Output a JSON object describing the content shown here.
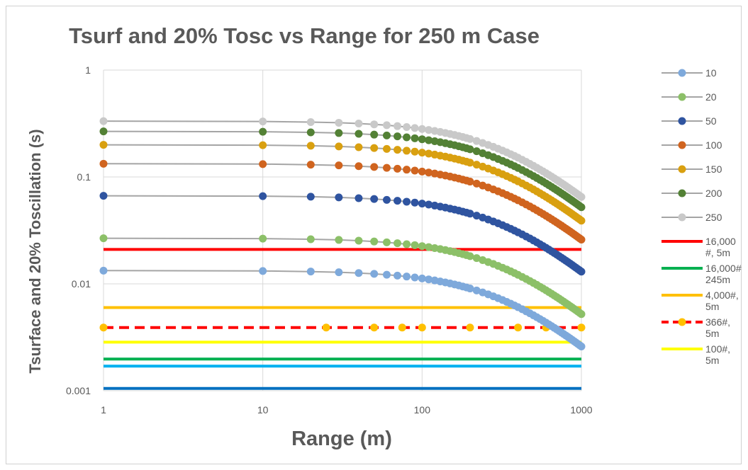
{
  "chart_data": {
    "type": "scatter",
    "title": "Tsurf and 20% Tosc vs Range  for 250 m Case",
    "xlabel": "Range (m)",
    "ylabel": "Tsurface and 20% Toscillation (s)",
    "xscale": "log",
    "yscale": "log",
    "xlim": [
      1,
      1000
    ],
    "ylim": [
      0.001,
      1
    ],
    "x_ticks": [
      "1",
      "10",
      "100",
      "1000"
    ],
    "y_ticks": [
      "0.001",
      "0.01",
      "0.1",
      "1"
    ],
    "grid": true,
    "legend_position": "right",
    "series": [
      {
        "name": "10",
        "color": "#7ea9db",
        "kind": "line-markers",
        "base": 0.0133
      },
      {
        "name": "20",
        "color": "#8cc068",
        "kind": "line-markers",
        "base": 0.0267
      },
      {
        "name": "50",
        "color": "#2f54a0",
        "kind": "line-markers",
        "base": 0.0667
      },
      {
        "name": "100",
        "color": "#d0641f",
        "kind": "line-markers",
        "base": 0.133
      },
      {
        "name": "150",
        "color": "#d9a010",
        "kind": "line-markers",
        "base": 0.2
      },
      {
        "name": "200",
        "color": "#538135",
        "kind": "line-markers",
        "base": 0.267
      },
      {
        "name": "250",
        "color": "#c9c9c9",
        "kind": "line-markers",
        "base": 0.333
      },
      {
        "name": "16,000\n#, 5m",
        "color": "#ff0000",
        "kind": "hline",
        "value": 0.021
      },
      {
        "name": "16,000#\n245m",
        "color": "#00b050",
        "kind": "hline",
        "value": 0.00198
      },
      {
        "name": "4,000#,\n5m",
        "color": "#ffc000",
        "kind": "hline",
        "value": 0.006
      },
      {
        "name": "366#,\n5m",
        "color": "#ff0000",
        "marker_color": "#ffc000",
        "kind": "dashed-markers",
        "value": 0.0039,
        "marker_x": [
          1,
          25,
          50,
          75,
          100,
          200,
          400,
          600,
          1000
        ]
      },
      {
        "name": "100#,\n5m",
        "color": "#ffff00",
        "kind": "hline",
        "value": 0.00285
      },
      {
        "name": "",
        "color": "#00b0f0",
        "kind": "hline",
        "value": 0.0017
      },
      {
        "name": "",
        "color": "#0070c0",
        "kind": "hline",
        "value": 0.00105
      }
    ],
    "marker_x": [
      1,
      10,
      20,
      30,
      40,
      50,
      60,
      70,
      80,
      90,
      100,
      110,
      120,
      130,
      140,
      150,
      160,
      170,
      180,
      190,
      200,
      220,
      240,
      260,
      280,
      300,
      320,
      340,
      360,
      380,
      400,
      425,
      450,
      475,
      500,
      525,
      550,
      575,
      600,
      625,
      650,
      675,
      700,
      725,
      750,
      775,
      800,
      825,
      850,
      875,
      900,
      925,
      950,
      975,
      1000
    ]
  }
}
